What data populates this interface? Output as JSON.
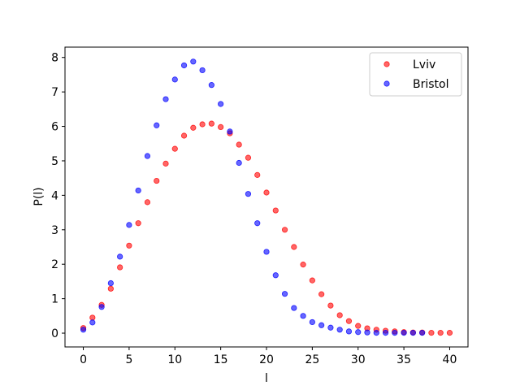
{
  "chart_data": {
    "type": "scatter",
    "title": "",
    "xlabel": "l",
    "ylabel": "P(l)",
    "xlim": [
      -2,
      42
    ],
    "ylim": [
      -0.4,
      8.3
    ],
    "xticks": [
      "0",
      "5",
      "10",
      "15",
      "20",
      "25",
      "30",
      "35",
      "40"
    ],
    "yticks": [
      "0",
      "1",
      "2",
      "3",
      "4",
      "5",
      "6",
      "7",
      "8"
    ],
    "grid": false,
    "legend": "top-right",
    "series": [
      {
        "name": "Lviv",
        "color": "#ff0000",
        "x": [
          0,
          1,
          2,
          3,
          4,
          5,
          6,
          7,
          8,
          9,
          10,
          11,
          12,
          13,
          14,
          15,
          16,
          17,
          18,
          19,
          20,
          21,
          22,
          23,
          24,
          25,
          26,
          27,
          28,
          29,
          30,
          31,
          32,
          33,
          34,
          35,
          36,
          37,
          38,
          39,
          40
        ],
        "y": [
          0.15,
          0.45,
          0.82,
          1.29,
          1.91,
          2.54,
          3.19,
          3.8,
          4.42,
          4.92,
          5.35,
          5.73,
          5.96,
          6.06,
          6.08,
          5.98,
          5.8,
          5.47,
          5.09,
          4.59,
          4.08,
          3.56,
          3.0,
          2.5,
          1.99,
          1.53,
          1.13,
          0.8,
          0.52,
          0.35,
          0.21,
          0.14,
          0.1,
          0.07,
          0.05,
          0.03,
          0.02,
          0.02,
          0.01,
          0.01,
          0.01
        ]
      },
      {
        "name": "Bristol",
        "color": "#0000ff",
        "x": [
          0,
          1,
          2,
          3,
          4,
          5,
          6,
          7,
          8,
          9,
          10,
          11,
          12,
          13,
          14,
          15,
          16,
          17,
          18,
          19,
          20,
          21,
          22,
          23,
          24,
          25,
          26,
          27,
          28,
          29,
          30,
          31,
          32,
          33,
          34,
          35,
          36,
          37
        ],
        "y": [
          0.1,
          0.31,
          0.76,
          1.45,
          2.22,
          3.14,
          4.14,
          5.14,
          6.03,
          6.79,
          7.36,
          7.77,
          7.88,
          7.63,
          7.2,
          6.65,
          5.85,
          4.94,
          4.04,
          3.19,
          2.36,
          1.68,
          1.14,
          0.73,
          0.5,
          0.32,
          0.23,
          0.16,
          0.1,
          0.05,
          0.03,
          0.02,
          0.01,
          0.01,
          0.01,
          0.01,
          0.01,
          0.01
        ]
      }
    ]
  }
}
